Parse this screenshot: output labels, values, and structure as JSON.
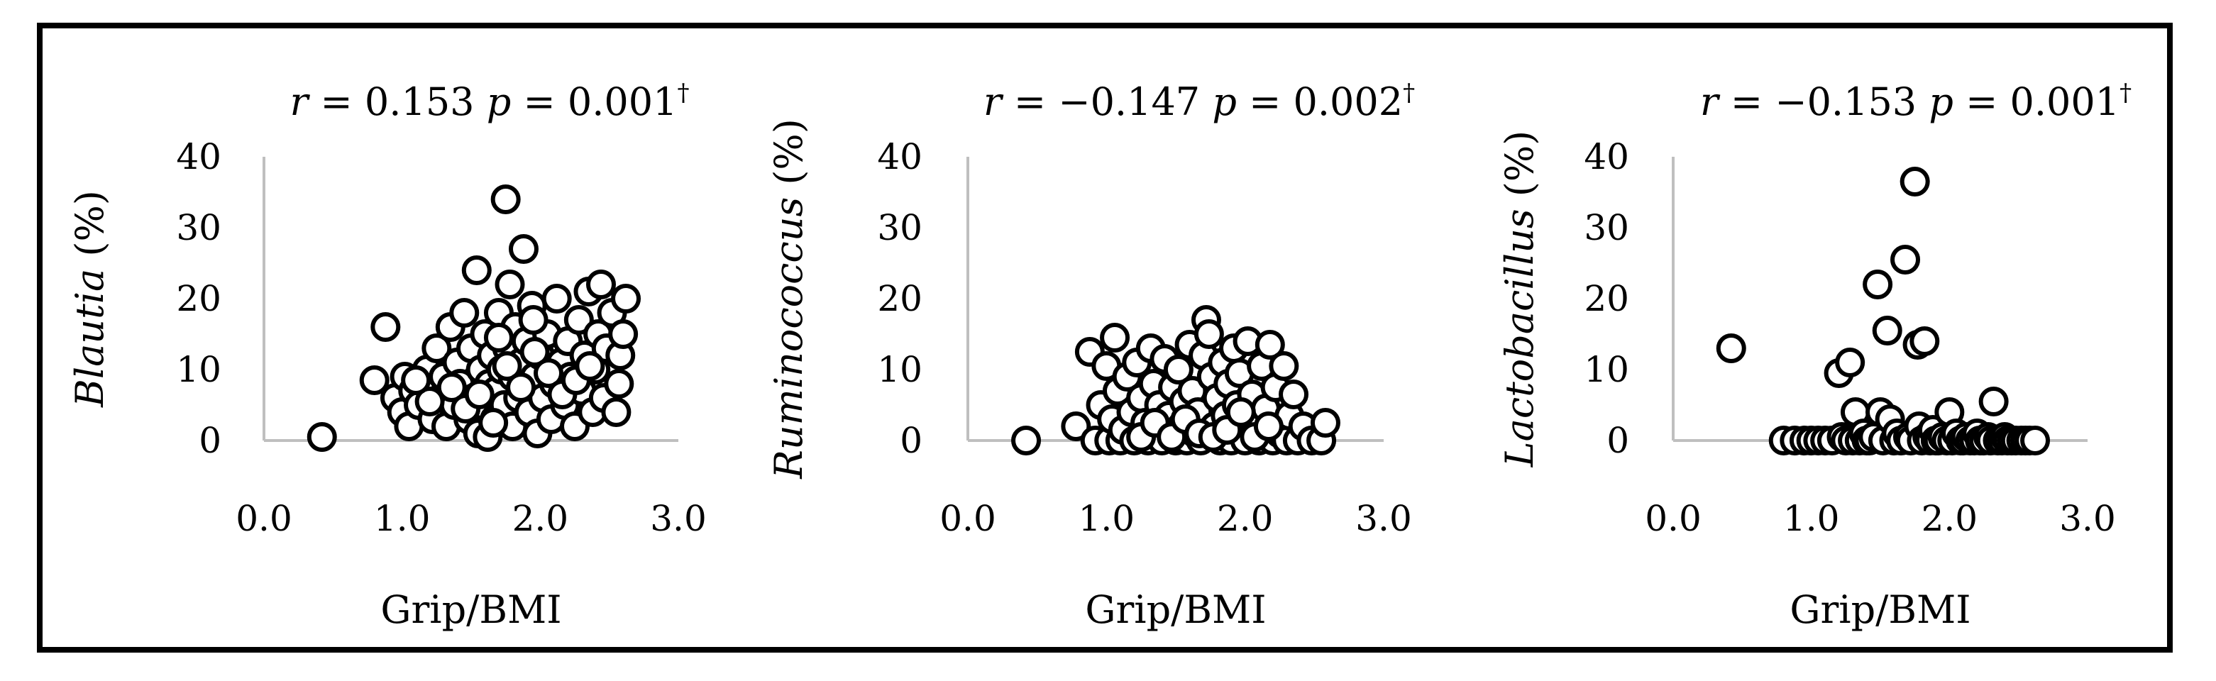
{
  "chart_data": [
    {
      "type": "scatter",
      "title_parts": {
        "r_label": "r",
        "r_text": " = 0.153 ",
        "p_label": "p",
        "p_text": " = 0.001",
        "mark": "†"
      },
      "xlabel": "Grip/BMI",
      "ylabel_parts": {
        "genus": "Blautia",
        "unit": " (%)"
      },
      "xlim": [
        0,
        3
      ],
      "ylim": [
        0,
        40
      ],
      "xticks": [
        "0.0",
        "1.0",
        "2.0",
        "3.0"
      ],
      "yticks": [
        "0",
        "10",
        "20",
        "30",
        "40"
      ],
      "grid": false,
      "marker_color": "#000000",
      "axis_color": "#bfbfbf",
      "points": [
        [
          0.42,
          0.5
        ],
        [
          0.8,
          8.5
        ],
        [
          0.88,
          16
        ],
        [
          0.95,
          6
        ],
        [
          1.0,
          4
        ],
        [
          1.02,
          9
        ],
        [
          1.05,
          2
        ],
        [
          1.08,
          7
        ],
        [
          1.12,
          5
        ],
        [
          1.18,
          10
        ],
        [
          1.22,
          3
        ],
        [
          1.25,
          13
        ],
        [
          1.28,
          6
        ],
        [
          1.3,
          9
        ],
        [
          1.32,
          2
        ],
        [
          1.35,
          16
        ],
        [
          1.38,
          5
        ],
        [
          1.4,
          11
        ],
        [
          1.42,
          8
        ],
        [
          1.45,
          18
        ],
        [
          1.48,
          3
        ],
        [
          1.5,
          13
        ],
        [
          1.52,
          6
        ],
        [
          1.54,
          24
        ],
        [
          1.55,
          1
        ],
        [
          1.57,
          10
        ],
        [
          1.58,
          5
        ],
        [
          1.6,
          15
        ],
        [
          1.62,
          0.5
        ],
        [
          1.63,
          8
        ],
        [
          1.65,
          12
        ],
        [
          1.67,
          3
        ],
        [
          1.68,
          7
        ],
        [
          1.7,
          18
        ],
        [
          1.72,
          10
        ],
        [
          1.74,
          5
        ],
        [
          1.75,
          34
        ],
        [
          1.76,
          13
        ],
        [
          1.78,
          22
        ],
        [
          1.8,
          2
        ],
        [
          1.8,
          9
        ],
        [
          1.82,
          16
        ],
        [
          1.84,
          6
        ],
        [
          1.86,
          11
        ],
        [
          1.88,
          27
        ],
        [
          1.9,
          14
        ],
        [
          1.92,
          4
        ],
        [
          1.94,
          19
        ],
        [
          1.96,
          9
        ],
        [
          1.98,
          1
        ],
        [
          2.0,
          12
        ],
        [
          2.02,
          6
        ],
        [
          2.05,
          15
        ],
        [
          2.08,
          3
        ],
        [
          2.1,
          8
        ],
        [
          2.12,
          20
        ],
        [
          2.15,
          11
        ],
        [
          2.18,
          5
        ],
        [
          2.2,
          14
        ],
        [
          2.22,
          9
        ],
        [
          2.25,
          2
        ],
        [
          2.28,
          17
        ],
        [
          2.3,
          7
        ],
        [
          2.32,
          12
        ],
        [
          2.35,
          21
        ],
        [
          2.38,
          4
        ],
        [
          2.4,
          10
        ],
        [
          2.42,
          15
        ],
        [
          2.44,
          22
        ],
        [
          2.46,
          6
        ],
        [
          2.48,
          13
        ],
        [
          2.52,
          18
        ],
        [
          2.55,
          4
        ],
        [
          2.57,
          8
        ],
        [
          2.58,
          12
        ],
        [
          2.6,
          15
        ],
        [
          2.62,
          20
        ],
        [
          1.2,
          5.5
        ],
        [
          1.36,
          7.5
        ],
        [
          1.46,
          4.5
        ],
        [
          1.56,
          6.5
        ],
        [
          1.66,
          2.5
        ],
        [
          1.76,
          10.5
        ],
        [
          1.86,
          7.5
        ],
        [
          1.96,
          12.5
        ],
        [
          2.06,
          9.5
        ],
        [
          2.16,
          6.5
        ],
        [
          2.26,
          8.5
        ],
        [
          2.36,
          10.5
        ],
        [
          1.1,
          8.5
        ],
        [
          1.7,
          14.5
        ],
        [
          1.95,
          17
        ]
      ]
    },
    {
      "type": "scatter",
      "title_parts": {
        "r_label": "r",
        "r_text": " = −0.147 ",
        "p_label": "p",
        "p_text": " = 0.002",
        "mark": "†"
      },
      "xlabel": "Grip/BMI",
      "ylabel_parts": {
        "genus": "Ruminococcus",
        "unit": " (%)"
      },
      "xlim": [
        0,
        3
      ],
      "ylim": [
        0,
        40
      ],
      "xticks": [
        "0.0",
        "1.0",
        "2.0",
        "3.0"
      ],
      "yticks": [
        "0",
        "10",
        "20",
        "30",
        "40"
      ],
      "grid": false,
      "marker_color": "#000000",
      "axis_color": "#bfbfbf",
      "points": [
        [
          0.42,
          0
        ],
        [
          0.78,
          2
        ],
        [
          0.88,
          12.5
        ],
        [
          0.92,
          0
        ],
        [
          0.96,
          5
        ],
        [
          1.0,
          10.5
        ],
        [
          1.02,
          0
        ],
        [
          1.04,
          3
        ],
        [
          1.06,
          14.5
        ],
        [
          1.08,
          7
        ],
        [
          1.1,
          0
        ],
        [
          1.12,
          1.5
        ],
        [
          1.15,
          9
        ],
        [
          1.18,
          4
        ],
        [
          1.2,
          0
        ],
        [
          1.22,
          11
        ],
        [
          1.25,
          6
        ],
        [
          1.28,
          2.5
        ],
        [
          1.3,
          0
        ],
        [
          1.32,
          13
        ],
        [
          1.34,
          8
        ],
        [
          1.36,
          1
        ],
        [
          1.38,
          5
        ],
        [
          1.4,
          0
        ],
        [
          1.42,
          11.5
        ],
        [
          1.45,
          3.5
        ],
        [
          1.48,
          7.5
        ],
        [
          1.5,
          0
        ],
        [
          1.52,
          10
        ],
        [
          1.54,
          2
        ],
        [
          1.56,
          5.5
        ],
        [
          1.58,
          0
        ],
        [
          1.6,
          13.5
        ],
        [
          1.62,
          7
        ],
        [
          1.64,
          1
        ],
        [
          1.66,
          4
        ],
        [
          1.68,
          0
        ],
        [
          1.7,
          12
        ],
        [
          1.72,
          17
        ],
        [
          1.74,
          15
        ],
        [
          1.76,
          9
        ],
        [
          1.78,
          2
        ],
        [
          1.8,
          6
        ],
        [
          1.82,
          0
        ],
        [
          1.84,
          11
        ],
        [
          1.86,
          3.5
        ],
        [
          1.88,
          8
        ],
        [
          1.9,
          0
        ],
        [
          1.92,
          13
        ],
        [
          1.94,
          5
        ],
        [
          1.96,
          9.5
        ],
        [
          1.98,
          1.5
        ],
        [
          2.0,
          0
        ],
        [
          2.02,
          14
        ],
        [
          2.05,
          6.5
        ],
        [
          2.08,
          2.5
        ],
        [
          2.1,
          0
        ],
        [
          2.12,
          10.5
        ],
        [
          2.15,
          4.5
        ],
        [
          2.18,
          13.5
        ],
        [
          2.2,
          0
        ],
        [
          2.22,
          7.5
        ],
        [
          2.25,
          1
        ],
        [
          2.28,
          10.5
        ],
        [
          2.3,
          0
        ],
        [
          2.32,
          3.5
        ],
        [
          2.35,
          6.5
        ],
        [
          2.38,
          0
        ],
        [
          2.42,
          2
        ],
        [
          2.48,
          0
        ],
        [
          2.55,
          0
        ],
        [
          2.58,
          2.5
        ],
        [
          1.25,
          0.5
        ],
        [
          1.35,
          2.5
        ],
        [
          1.47,
          0.5
        ],
        [
          1.57,
          3
        ],
        [
          1.67,
          1
        ],
        [
          1.77,
          0.5
        ],
        [
          1.87,
          1.5
        ],
        [
          1.97,
          4
        ],
        [
          2.07,
          0.5
        ],
        [
          2.17,
          2
        ]
      ]
    },
    {
      "type": "scatter",
      "title_parts": {
        "r_label": "r",
        "r_text": " = −0.153 ",
        "p_label": "p",
        "p_text": " = 0.001",
        "mark": "†"
      },
      "xlabel": "Grip/BMI",
      "ylabel_parts": {
        "genus": "Lactobacillus",
        "unit": " (%)"
      },
      "xlim": [
        0,
        3
      ],
      "ylim": [
        0,
        40
      ],
      "xticks": [
        "0.0",
        "1.0",
        "2.0",
        "3.0"
      ],
      "yticks": [
        "0",
        "10",
        "20",
        "30",
        "40"
      ],
      "grid": false,
      "marker_color": "#000000",
      "axis_color": "#bfbfbf",
      "points": [
        [
          0.42,
          13
        ],
        [
          0.8,
          0
        ],
        [
          0.88,
          0
        ],
        [
          0.95,
          0
        ],
        [
          1.0,
          0
        ],
        [
          1.05,
          0
        ],
        [
          1.1,
          0
        ],
        [
          1.15,
          0
        ],
        [
          1.2,
          9.5
        ],
        [
          1.22,
          0.5
        ],
        [
          1.25,
          0
        ],
        [
          1.28,
          11
        ],
        [
          1.3,
          0
        ],
        [
          1.32,
          4
        ],
        [
          1.35,
          0
        ],
        [
          1.38,
          1
        ],
        [
          1.4,
          0
        ],
        [
          1.42,
          0
        ],
        [
          1.45,
          0.5
        ],
        [
          1.48,
          22
        ],
        [
          1.5,
          4
        ],
        [
          1.52,
          0
        ],
        [
          1.55,
          15.5
        ],
        [
          1.57,
          3
        ],
        [
          1.6,
          0
        ],
        [
          1.62,
          1
        ],
        [
          1.65,
          0
        ],
        [
          1.68,
          25.5
        ],
        [
          1.7,
          0.5
        ],
        [
          1.72,
          0
        ],
        [
          1.75,
          36.5
        ],
        [
          1.77,
          13.5
        ],
        [
          1.78,
          2
        ],
        [
          1.8,
          0
        ],
        [
          1.82,
          14
        ],
        [
          1.84,
          0.5
        ],
        [
          1.86,
          0
        ],
        [
          1.88,
          1.5
        ],
        [
          1.9,
          0
        ],
        [
          1.92,
          0
        ],
        [
          1.95,
          0.5
        ],
        [
          1.98,
          0
        ],
        [
          2.0,
          4
        ],
        [
          2.02,
          0
        ],
        [
          2.05,
          1
        ],
        [
          2.08,
          0
        ],
        [
          2.1,
          0
        ],
        [
          2.12,
          0.5
        ],
        [
          2.15,
          0
        ],
        [
          2.18,
          0
        ],
        [
          2.2,
          1
        ],
        [
          2.22,
          0
        ],
        [
          2.25,
          0
        ],
        [
          2.28,
          0.5
        ],
        [
          2.3,
          0
        ],
        [
          2.32,
          5.5
        ],
        [
          2.35,
          0
        ],
        [
          2.38,
          0
        ],
        [
          2.4,
          0.5
        ],
        [
          2.42,
          0
        ],
        [
          2.45,
          0
        ],
        [
          2.48,
          0
        ],
        [
          2.52,
          0
        ],
        [
          2.55,
          0
        ],
        [
          2.58,
          0
        ],
        [
          2.62,
          0
        ]
      ]
    }
  ]
}
